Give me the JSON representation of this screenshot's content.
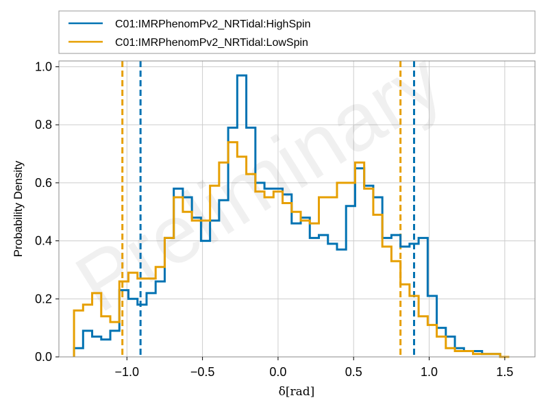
{
  "chart_data": {
    "type": "step-histogram",
    "xlabel": "δ[rad]",
    "ylabel": "Probability Density",
    "watermark": "Preliminary",
    "xlim": [
      -1.45,
      1.7
    ],
    "ylim": [
      0,
      1.02
    ],
    "xticks": [
      -1.0,
      -0.5,
      0.0,
      0.5,
      1.0,
      1.5
    ],
    "xtick_labels": [
      "−1.0",
      "−0.5",
      "0.0",
      "0.5",
      "1.0",
      "1.5"
    ],
    "yticks": [
      0.0,
      0.2,
      0.4,
      0.6,
      0.8,
      1.0
    ],
    "ytick_labels": [
      "0.0",
      "0.2",
      "0.4",
      "0.6",
      "0.8",
      "1.0"
    ],
    "grid": true,
    "legend_position": "top",
    "bin_edges": [
      -1.35,
      -1.29,
      -1.23,
      -1.17,
      -1.11,
      -1.05,
      -0.99,
      -0.93,
      -0.87,
      -0.81,
      -0.75,
      -0.69,
      -0.63,
      -0.57,
      -0.51,
      -0.45,
      -0.39,
      -0.33,
      -0.27,
      -0.21,
      -0.15,
      -0.09,
      -0.03,
      0.03,
      0.09,
      0.15,
      0.21,
      0.27,
      0.33,
      0.39,
      0.45,
      0.51,
      0.57,
      0.63,
      0.69,
      0.75,
      0.81,
      0.87,
      0.93,
      0.99,
      1.05,
      1.11,
      1.17,
      1.23,
      1.29,
      1.35,
      1.41,
      1.47,
      1.53
    ],
    "series": [
      {
        "name": "C01:IMRPhenomPv2_NRTidal:HighSpin",
        "color": "#0072b2",
        "values": [
          0.03,
          0.09,
          0.07,
          0.06,
          0.09,
          0.23,
          0.2,
          0.18,
          0.22,
          0.26,
          0.41,
          0.58,
          0.55,
          0.48,
          0.4,
          0.47,
          0.54,
          0.79,
          0.97,
          0.79,
          0.6,
          0.58,
          0.58,
          0.56,
          0.46,
          0.48,
          0.41,
          0.42,
          0.39,
          0.37,
          0.52,
          0.65,
          0.59,
          0.55,
          0.41,
          0.42,
          0.38,
          0.39,
          0.41,
          0.21,
          0.1,
          0.07,
          0.03,
          0.02,
          0.02,
          0.01,
          0.01,
          0.0
        ],
        "interval": [
          -0.91,
          0.9
        ]
      },
      {
        "name": "C01:IMRPhenomPv2_NRTidal:LowSpin",
        "color": "#e69f00",
        "values": [
          0.16,
          0.18,
          0.22,
          0.14,
          0.12,
          0.26,
          0.29,
          0.27,
          0.27,
          0.31,
          0.41,
          0.55,
          0.5,
          0.47,
          0.47,
          0.59,
          0.67,
          0.74,
          0.69,
          0.63,
          0.57,
          0.55,
          0.57,
          0.53,
          0.5,
          0.47,
          0.46,
          0.55,
          0.55,
          0.6,
          0.6,
          0.67,
          0.58,
          0.49,
          0.38,
          0.33,
          0.25,
          0.21,
          0.14,
          0.11,
          0.07,
          0.03,
          0.02,
          0.02,
          0.01,
          0.01,
          0.01,
          0.0
        ],
        "interval": [
          -1.03,
          0.81
        ]
      }
    ]
  }
}
